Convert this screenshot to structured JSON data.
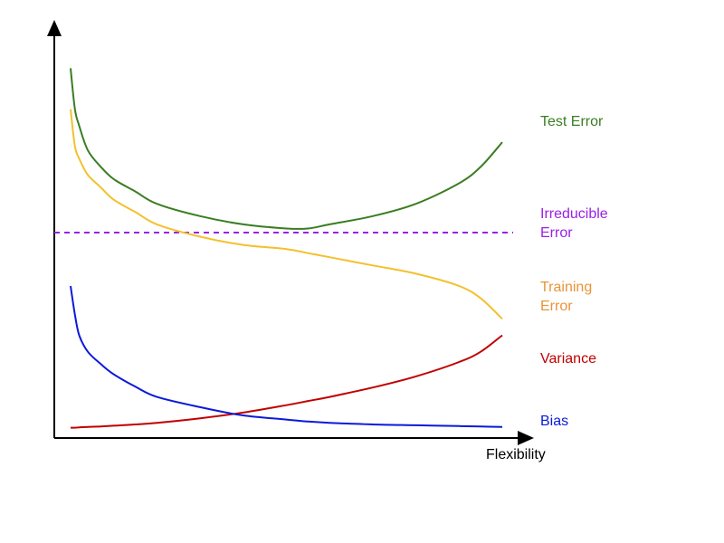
{
  "chart_data": {
    "type": "line",
    "xlabel": "Flexibility",
    "ylabel": "",
    "xlim": [
      0,
      1
    ],
    "ylim": [
      0,
      1
    ],
    "grid": false,
    "legend": "inline-right",
    "x": [
      0,
      0.01,
      0.02,
      0.04,
      0.07,
      0.1,
      0.15,
      0.2,
      0.3,
      0.4,
      0.5,
      0.55,
      0.6,
      0.7,
      0.8,
      0.9,
      0.95,
      1.0
    ],
    "series": [
      {
        "name": "Test Error",
        "lines": [
          "Test Error"
        ],
        "color": "#3a7d22",
        "style": "solid",
        "values": [
          0.9,
          0.8,
          0.76,
          0.7,
          0.66,
          0.63,
          0.6,
          0.57,
          0.54,
          0.52,
          0.51,
          0.51,
          0.52,
          0.54,
          0.57,
          0.62,
          0.66,
          0.72
        ]
      },
      {
        "name": "Irreducible Error",
        "lines": [
          "Irreducible",
          "Error"
        ],
        "color": "#9b1fe8",
        "style": "dashed",
        "values": [
          0.5,
          0.5,
          0.5,
          0.5,
          0.5,
          0.5,
          0.5,
          0.5,
          0.5,
          0.5,
          0.5,
          0.5,
          0.5,
          0.5,
          0.5,
          0.5,
          0.5,
          0.5
        ]
      },
      {
        "name": "Training Error",
        "lines": [
          "Training",
          "Error"
        ],
        "color": "#f2c12e",
        "labelColor": "#e8943a",
        "style": "solid",
        "values": [
          0.8,
          0.71,
          0.68,
          0.64,
          0.61,
          0.58,
          0.55,
          0.52,
          0.49,
          0.47,
          0.46,
          0.45,
          0.44,
          0.42,
          0.4,
          0.37,
          0.34,
          0.29
        ]
      },
      {
        "name": "Variance",
        "lines": [
          "Variance"
        ],
        "color": "#c00000",
        "style": "solid",
        "values": [
          0.025,
          0.025,
          0.026,
          0.027,
          0.028,
          0.03,
          0.033,
          0.037,
          0.048,
          0.062,
          0.08,
          0.09,
          0.1,
          0.123,
          0.15,
          0.185,
          0.21,
          0.25
        ]
      },
      {
        "name": "Bias",
        "lines": [
          "Bias"
        ],
        "color": "#0a1adb",
        "style": "solid",
        "values": [
          0.37,
          0.3,
          0.25,
          0.21,
          0.18,
          0.155,
          0.125,
          0.1,
          0.075,
          0.055,
          0.045,
          0.04,
          0.037,
          0.033,
          0.031,
          0.029,
          0.028,
          0.027
        ]
      }
    ]
  },
  "colors": {
    "axis": "#000000"
  }
}
